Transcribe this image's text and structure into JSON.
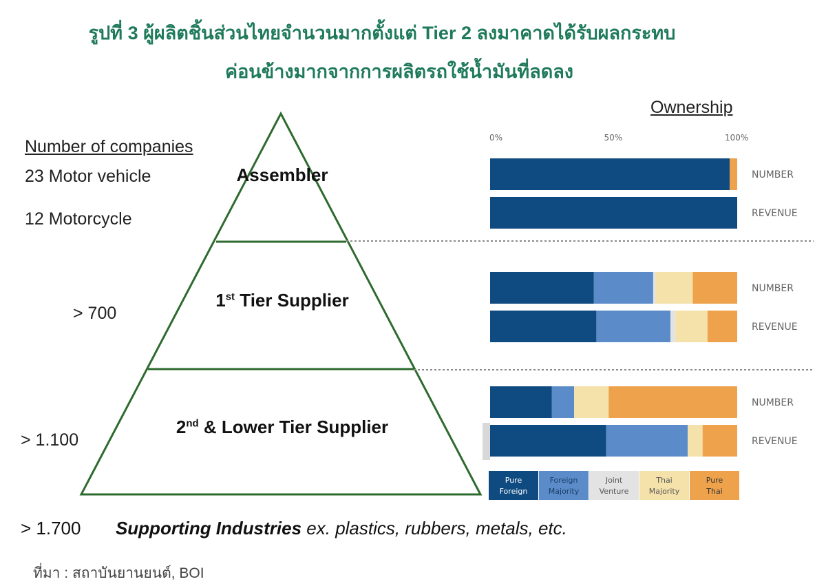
{
  "header": {
    "title_line1": "รูปที่ 3 ผู้ผลิตชิ้นส่วนไทยจำนวนมากตั้งแต่ Tier 2 ลงมาคาดได้รับผลกระทบ",
    "title_line2": "ค่อนข้างมากจากการผลิตรถใช้น้ำมันที่ลดลง"
  },
  "pyramid": {
    "heading": "Number of companies",
    "assembler": {
      "label": "Assembler",
      "count1": "23 Motor vehicle",
      "count2": "12 Motorcycle"
    },
    "tier1": {
      "label_pre": "1",
      "label_sup": "st",
      "label_post": " Tier Supplier",
      "count": "> 700"
    },
    "tier2": {
      "label_pre": "2",
      "label_sup": "nd",
      "label_post": " & Lower Tier Supplier",
      "count": "> 1.100"
    },
    "supporting": {
      "count": "> 1.700",
      "bold": "Supporting Industries",
      "rest": " ex. plastics, rubbers, metals, etc."
    }
  },
  "source": "ที่มา : สถาบันยานยนต์, BOI",
  "chart_data": {
    "type": "bar",
    "orientation": "horizontal-stacked-percent",
    "title": "Ownership",
    "x_ticks": [
      "0%",
      "50%",
      "100%"
    ],
    "xlim": [
      0,
      100
    ],
    "categories": [
      "Pure Foreign",
      "Foreign Majority",
      "Joint Venture",
      "Thai Majority",
      "Pure Thai"
    ],
    "colors": [
      "#0f4a80",
      "#5b8cc9",
      "#e3e3e3",
      "#f5e2aa",
      "#eea24c"
    ],
    "legend_position": "bottom",
    "rows": [
      {
        "group": "Assembler",
        "label": "NUMBER",
        "values": [
          97,
          0,
          0,
          0,
          3
        ]
      },
      {
        "group": "Assembler",
        "label": "REVENUE",
        "values": [
          100,
          0,
          0,
          0,
          0
        ]
      },
      {
        "group": "1st Tier Supplier",
        "label": "NUMBER",
        "values": [
          42,
          24,
          1,
          15,
          18
        ]
      },
      {
        "group": "1st Tier Supplier",
        "label": "REVENUE",
        "values": [
          43,
          30,
          2,
          13,
          12
        ]
      },
      {
        "group": "2nd & Lower Tier Supplier",
        "label": "NUMBER",
        "values": [
          25,
          9,
          0,
          14,
          52
        ]
      },
      {
        "group": "2nd & Lower Tier Supplier",
        "label": "REVENUE",
        "values": [
          47,
          33,
          0,
          6,
          14
        ]
      }
    ]
  }
}
